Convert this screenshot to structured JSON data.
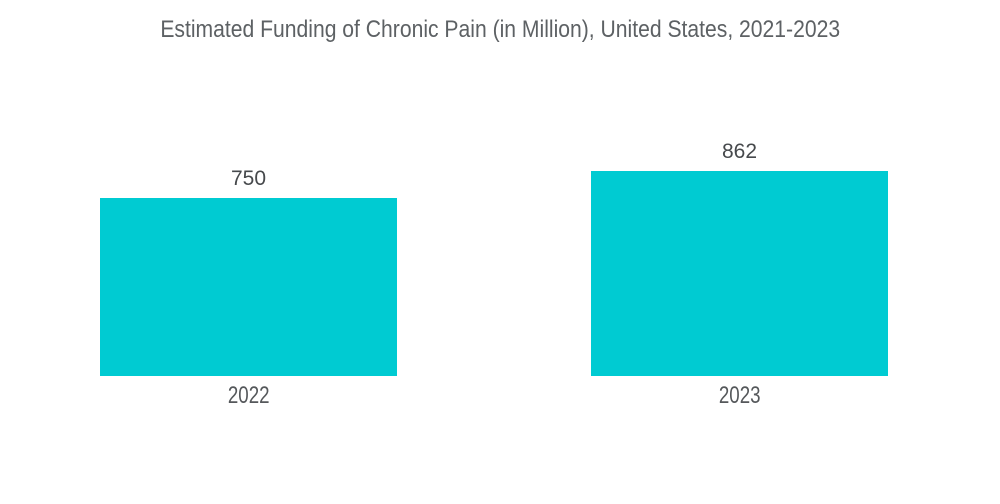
{
  "chart_data": {
    "type": "bar",
    "title": "Estimated Funding of Chronic Pain (in Million), United States, 2021-2023",
    "categories": [
      "2022",
      "2023"
    ],
    "values": [
      750,
      862
    ],
    "value_labels": [
      "750",
      "862"
    ],
    "xlabel": "",
    "ylabel": "",
    "ylim": [
      0,
      900
    ],
    "grid": false,
    "legend": false,
    "axes_visible": false,
    "bar_color": "#00CBD2",
    "background_color": "#FFFFFF",
    "title_color": "#5D6164",
    "value_label_color": "#46494C",
    "category_label_color": "#55585B"
  }
}
